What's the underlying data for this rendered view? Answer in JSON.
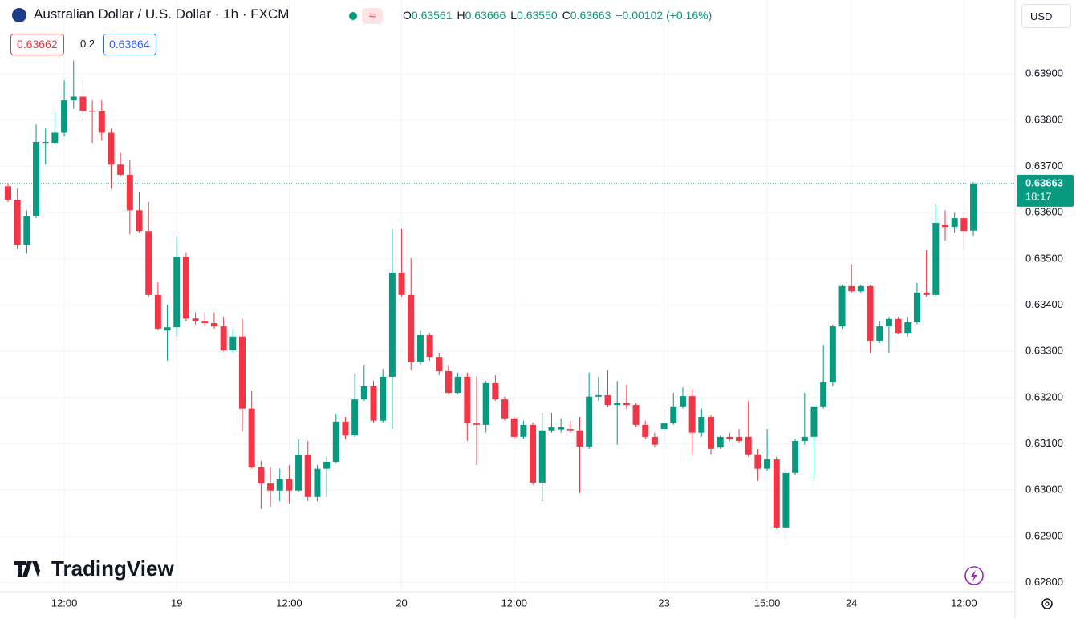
{
  "header": {
    "symbol": "Australian Dollar / U.S. Dollar · 1h · FXCM",
    "ohlc": [
      {
        "label": "O",
        "value": "0.63561"
      },
      {
        "label": "H",
        "value": "0.63666"
      },
      {
        "label": "L",
        "value": "0.63550"
      },
      {
        "label": "C",
        "value": "0.63663"
      }
    ],
    "change": "+0.00102 (+0.16%)",
    "bid": "0.63662",
    "spread": "0.2",
    "ask": "0.63664",
    "currency": "USD",
    "watermark": "TradingView"
  },
  "chart_data": {
    "type": "candlestick",
    "up_color": "#089981",
    "down_color": "#f23645",
    "grid": true,
    "countdown": "18:17",
    "categories": [
      null,
      null,
      null,
      null,
      null,
      null,
      "12:00",
      null,
      null,
      null,
      null,
      null,
      null,
      null,
      null,
      null,
      null,
      null,
      "19",
      null,
      null,
      null,
      null,
      null,
      null,
      null,
      null,
      null,
      null,
      null,
      "12:00",
      null,
      null,
      null,
      null,
      null,
      null,
      null,
      null,
      null,
      null,
      null,
      "20",
      null,
      null,
      null,
      null,
      null,
      null,
      null,
      null,
      null,
      null,
      null,
      "12:00",
      null,
      null,
      null,
      null,
      null,
      null,
      null,
      null,
      null,
      null,
      null,
      null,
      null,
      null,
      null,
      "23",
      null,
      null,
      null,
      null,
      null,
      null,
      null,
      null,
      null,
      null,
      "15:00",
      null,
      null,
      null,
      null,
      null,
      null,
      null,
      null,
      "24",
      null,
      null,
      null,
      null,
      null,
      null,
      null,
      null,
      null,
      null,
      null,
      "12:00",
      null
    ],
    "open": [
      0.63657,
      0.63628,
      0.63531,
      0.63592,
      0.63751,
      0.63751,
      0.63773,
      0.63843,
      0.63851,
      0.6382,
      0.63819,
      0.63773,
      0.63704,
      0.63682,
      0.63605,
      0.6356,
      0.63422,
      0.63345,
      0.63352,
      0.63505,
      0.63371,
      0.63366,
      0.63361,
      0.63354,
      0.63302,
      0.63332,
      0.63176,
      0.63049,
      0.63014,
      0.62999,
      0.63023,
      0.62999,
      0.63075,
      0.62985,
      0.63046,
      0.63061,
      0.63148,
      0.63118,
      0.63196,
      0.63224,
      0.6315,
      0.63245,
      0.6347,
      0.63422,
      0.63276,
      0.63335,
      0.63288,
      0.63257,
      0.6321,
      0.63245,
      0.63144,
      0.63141,
      0.63231,
      0.63196,
      0.63155,
      0.63115,
      0.63141,
      0.63016,
      0.63129,
      0.63131,
      0.63132,
      0.63129,
      0.63094,
      0.63202,
      0.63205,
      0.63184,
      0.63188,
      0.63184,
      0.63141,
      0.63115,
      0.63132,
      0.63144,
      0.63181,
      0.63203,
      0.63124,
      0.63158,
      0.63092,
      0.63115,
      0.63115,
      0.63115,
      0.63077,
      0.63046,
      0.63066,
      0.62919,
      0.63037,
      0.63106,
      0.63115,
      0.63181,
      0.63233,
      0.63354,
      0.63441,
      0.6343,
      0.63441,
      0.63323,
      0.63354,
      0.6337,
      0.6334,
      0.63363,
      0.63427,
      0.63422,
      0.63574,
      0.63569,
      0.63588,
      0.63561
    ],
    "high": [
      0.63664,
      0.63652,
      0.63605,
      0.63791,
      0.63782,
      0.63817,
      0.63886,
      0.63929,
      0.63886,
      0.63843,
      0.63843,
      0.63782,
      0.6373,
      0.63713,
      0.63644,
      0.63623,
      0.63449,
      0.63401,
      0.63548,
      0.63514,
      0.63384,
      0.63384,
      0.63384,
      0.63375,
      0.63349,
      0.6337,
      0.63214,
      0.63063,
      0.63049,
      0.63046,
      0.63054,
      0.6311,
      0.63106,
      0.63054,
      0.63072,
      0.63165,
      0.63158,
      0.63252,
      0.63271,
      0.63236,
      0.63262,
      0.63566,
      0.63566,
      0.63501,
      0.63345,
      0.6334,
      0.63297,
      0.63271,
      0.63254,
      0.63254,
      0.63245,
      0.63236,
      0.63248,
      0.63202,
      0.63158,
      0.6315,
      0.63146,
      0.63167,
      0.63167,
      0.63155,
      0.6315,
      0.63158,
      0.63254,
      0.63245,
      0.63259,
      0.63236,
      0.63228,
      0.63188,
      0.6315,
      0.63124,
      0.63176,
      0.6321,
      0.63222,
      0.63219,
      0.63176,
      0.63162,
      0.63118,
      0.63124,
      0.63132,
      0.63193,
      0.63089,
      0.63132,
      0.63072,
      0.6304,
      0.6311,
      0.6321,
      0.63184,
      0.63314,
      0.63358,
      0.63444,
      0.63488,
      0.63444,
      0.63444,
      0.63366,
      0.63375,
      0.63375,
      0.63375,
      0.63448,
      0.63519,
      0.63618,
      0.63605,
      0.636,
      0.636,
      0.63666
    ],
    "low": [
      0.63623,
      0.63522,
      0.63512,
      0.63588,
      0.63704,
      0.63747,
      0.63765,
      0.63825,
      0.63799,
      0.63751,
      0.63756,
      0.63652,
      0.63678,
      0.63553,
      0.63557,
      0.63418,
      0.63345,
      0.6328,
      0.63332,
      0.63366,
      0.63358,
      0.63354,
      0.63349,
      0.633,
      0.63297,
      0.63127,
      0.63046,
      0.62959,
      0.62964,
      0.62976,
      0.62971,
      0.62995,
      0.62976,
      0.62976,
      0.62985,
      0.63058,
      0.6311,
      0.63115,
      0.63193,
      0.63144,
      0.63146,
      0.63132,
      0.63418,
      0.63259,
      0.63271,
      0.6328,
      0.63248,
      0.63207,
      0.63207,
      0.63106,
      0.63054,
      0.63124,
      0.63193,
      0.6315,
      0.6311,
      0.6311,
      0.63011,
      0.62976,
      0.63124,
      0.63124,
      0.63124,
      0.62994,
      0.63089,
      0.63193,
      0.63179,
      0.63098,
      0.63176,
      0.63137,
      0.6311,
      0.63092,
      0.63092,
      0.63141,
      0.63176,
      0.63077,
      0.63115,
      0.63077,
      0.63089,
      0.63106,
      0.63103,
      0.63072,
      0.6302,
      0.63042,
      0.62916,
      0.6289,
      0.63033,
      0.63098,
      0.63025,
      0.63176,
      0.63224,
      0.63349,
      0.63427,
      0.63427,
      0.63297,
      0.63318,
      0.63297,
      0.63337,
      0.63332,
      0.63359,
      0.63418,
      0.63418,
      0.6354,
      0.63557,
      0.63519,
      0.6355
    ],
    "close": [
      0.63628,
      0.63531,
      0.63592,
      0.63753,
      0.63753,
      0.63773,
      0.63843,
      0.63851,
      0.6382,
      0.63819,
      0.63773,
      0.63704,
      0.63682,
      0.63605,
      0.6356,
      0.63422,
      0.63349,
      0.63352,
      0.63505,
      0.63371,
      0.63366,
      0.63361,
      0.63354,
      0.63302,
      0.63332,
      0.63176,
      0.63049,
      0.63014,
      0.62999,
      0.63023,
      0.62999,
      0.63075,
      0.62985,
      0.63046,
      0.63061,
      0.63148,
      0.63118,
      0.63196,
      0.63224,
      0.6315,
      0.63245,
      0.6347,
      0.63422,
      0.63276,
      0.63335,
      0.63288,
      0.63257,
      0.6321,
      0.63245,
      0.63144,
      0.63141,
      0.63231,
      0.63196,
      0.63155,
      0.63115,
      0.63141,
      0.63016,
      0.63129,
      0.63136,
      0.63136,
      0.63129,
      0.63094,
      0.63202,
      0.63205,
      0.63184,
      0.63188,
      0.63184,
      0.63141,
      0.63115,
      0.63098,
      0.63144,
      0.63181,
      0.63203,
      0.63124,
      0.63158,
      0.63089,
      0.63115,
      0.6311,
      0.63106,
      0.63077,
      0.63046,
      0.63066,
      0.62919,
      0.63037,
      0.63106,
      0.63115,
      0.63181,
      0.63233,
      0.63354,
      0.63441,
      0.6343,
      0.63441,
      0.63323,
      0.63354,
      0.6337,
      0.6334,
      0.63363,
      0.63427,
      0.63422,
      0.63578,
      0.63569,
      0.63588,
      0.6356,
      0.63663
    ],
    "ylim": [
      0.6278,
      0.6406
    ],
    "yticks": [
      {
        "value": 0.628,
        "label": "0.62800"
      },
      {
        "value": 0.629,
        "label": "0.62900"
      },
      {
        "value": 0.63,
        "label": "0.63000"
      },
      {
        "value": 0.631,
        "label": "0.63100"
      },
      {
        "value": 0.632,
        "label": "0.63200"
      },
      {
        "value": 0.633,
        "label": "0.63300"
      },
      {
        "value": 0.634,
        "label": "0.63400"
      },
      {
        "value": 0.635,
        "label": "0.63500"
      },
      {
        "value": 0.636,
        "label": "0.63600"
      },
      {
        "value": 0.637,
        "label": "0.63700"
      },
      {
        "value": 0.638,
        "label": "0.63800"
      },
      {
        "value": 0.639,
        "label": "0.63900"
      }
    ]
  }
}
